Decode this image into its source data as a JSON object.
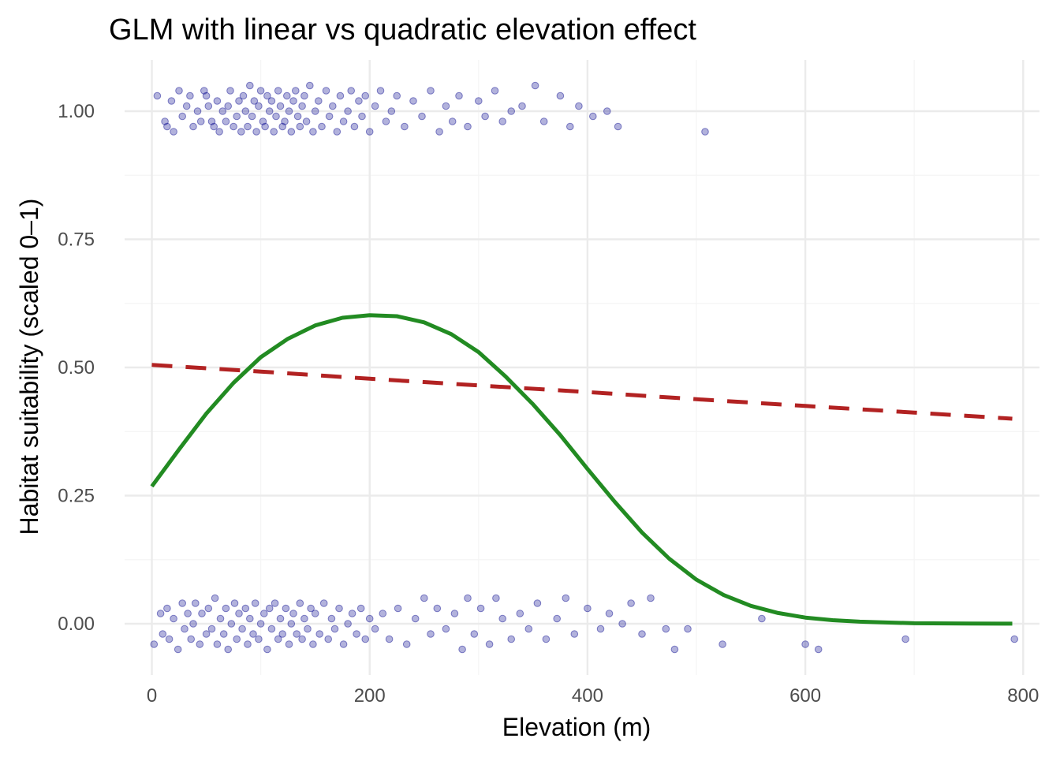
{
  "chart_data": {
    "type": "scatter",
    "title": "GLM with linear vs quadratic elevation effect",
    "xlabel": "Elevation (m)",
    "ylabel": "Habitat suitability (scaled 0–1)",
    "xlim": [
      -25,
      815
    ],
    "ylim": [
      -0.1,
      1.1
    ],
    "x_ticks": [
      0,
      200,
      400,
      600,
      800
    ],
    "x_tick_labels": [
      "0",
      "200",
      "400",
      "600",
      "800"
    ],
    "y_ticks": [
      0,
      0.25,
      0.5,
      0.75,
      1.0
    ],
    "y_tick_labels": [
      "0.00",
      "0.25",
      "0.50",
      "0.75",
      "1.00"
    ],
    "x_minor": [
      100,
      300,
      500,
      700
    ],
    "y_minor": [
      0.125,
      0.375,
      0.625,
      0.875
    ],
    "grid": true,
    "legend": "none",
    "colors": {
      "points": "#00008B",
      "linear": "#B22222",
      "quadratic": "#228B22",
      "grid_major": "#EBEBEB",
      "grid_minor": "#F5F5F5"
    },
    "series": [
      {
        "kind": "points",
        "style": "jittered semi-transparent dots",
        "points": [
          [
            5,
            1.03
          ],
          [
            12,
            0.98
          ],
          [
            14,
            0.97
          ],
          [
            18,
            1.02
          ],
          [
            20,
            0.96
          ],
          [
            25,
            1.04
          ],
          [
            28,
            0.99
          ],
          [
            32,
            1.01
          ],
          [
            35,
            1.03
          ],
          [
            38,
            0.97
          ],
          [
            42,
            1.0
          ],
          [
            45,
            0.98
          ],
          [
            48,
            1.04
          ],
          [
            50,
            1.03
          ],
          [
            52,
            1.01
          ],
          [
            55,
            0.98
          ],
          [
            57,
            0.97
          ],
          [
            60,
            1.02
          ],
          [
            62,
            0.96
          ],
          [
            65,
            1.0
          ],
          [
            68,
            0.98
          ],
          [
            70,
            1.01
          ],
          [
            72,
            1.04
          ],
          [
            75,
            0.97
          ],
          [
            78,
            0.99
          ],
          [
            80,
            1.02
          ],
          [
            82,
            0.96
          ],
          [
            84,
            1.03
          ],
          [
            86,
            1.0
          ],
          [
            88,
            0.97
          ],
          [
            90,
            1.05
          ],
          [
            92,
            0.99
          ],
          [
            94,
            1.02
          ],
          [
            96,
            0.96
          ],
          [
            98,
            1.01
          ],
          [
            100,
            1.04
          ],
          [
            102,
            0.98
          ],
          [
            104,
            0.97
          ],
          [
            106,
            1.03
          ],
          [
            108,
            1.0
          ],
          [
            110,
            1.02
          ],
          [
            112,
            0.96
          ],
          [
            114,
            0.99
          ],
          [
            116,
            1.04
          ],
          [
            118,
            1.01
          ],
          [
            120,
            0.97
          ],
          [
            122,
            0.98
          ],
          [
            124,
            1.03
          ],
          [
            126,
            1.0
          ],
          [
            128,
            0.96
          ],
          [
            130,
            1.02
          ],
          [
            132,
            1.04
          ],
          [
            134,
            0.99
          ],
          [
            136,
            0.97
          ],
          [
            138,
            1.01
          ],
          [
            140,
            1.03
          ],
          [
            142,
            0.98
          ],
          [
            145,
            1.05
          ],
          [
            148,
            0.96
          ],
          [
            150,
            1.0
          ],
          [
            153,
            1.02
          ],
          [
            156,
            0.97
          ],
          [
            160,
            1.04
          ],
          [
            163,
            0.99
          ],
          [
            166,
            1.01
          ],
          [
            170,
            0.96
          ],
          [
            173,
            1.03
          ],
          [
            176,
            0.98
          ],
          [
            180,
            1.0
          ],
          [
            183,
            1.04
          ],
          [
            186,
            0.97
          ],
          [
            190,
            1.02
          ],
          [
            193,
            0.99
          ],
          [
            196,
            1.03
          ],
          [
            200,
            0.96
          ],
          [
            205,
            1.01
          ],
          [
            210,
            1.04
          ],
          [
            215,
            0.98
          ],
          [
            220,
            1.0
          ],
          [
            225,
            1.03
          ],
          [
            232,
            0.97
          ],
          [
            240,
            1.02
          ],
          [
            248,
            0.99
          ],
          [
            256,
            1.04
          ],
          [
            264,
            0.96
          ],
          [
            270,
            1.01
          ],
          [
            276,
            0.98
          ],
          [
            282,
            1.03
          ],
          [
            290,
            0.97
          ],
          [
            300,
            1.02
          ],
          [
            306,
            0.99
          ],
          [
            315,
            1.04
          ],
          [
            322,
            0.98
          ],
          [
            330,
            1.0
          ],
          [
            340,
            1.01
          ],
          [
            352,
            1.05
          ],
          [
            360,
            0.98
          ],
          [
            375,
            1.03
          ],
          [
            384,
            0.97
          ],
          [
            392,
            1.01
          ],
          [
            405,
            0.99
          ],
          [
            418,
            1.0
          ],
          [
            428,
            0.97
          ],
          [
            508,
            0.96
          ],
          [
            2,
            -0.04
          ],
          [
            8,
            0.02
          ],
          [
            10,
            -0.02
          ],
          [
            14,
            0.03
          ],
          [
            16,
            -0.03
          ],
          [
            20,
            0.01
          ],
          [
            24,
            -0.05
          ],
          [
            28,
            0.04
          ],
          [
            30,
            -0.01
          ],
          [
            33,
            0.02
          ],
          [
            36,
            -0.03
          ],
          [
            38,
            0.0
          ],
          [
            40,
            0.04
          ],
          [
            44,
            -0.04
          ],
          [
            46,
            0.02
          ],
          [
            50,
            -0.02
          ],
          [
            52,
            0.03
          ],
          [
            55,
            -0.01
          ],
          [
            58,
            0.05
          ],
          [
            60,
            -0.04
          ],
          [
            63,
            0.01
          ],
          [
            66,
            -0.02
          ],
          [
            68,
            0.03
          ],
          [
            70,
            -0.05
          ],
          [
            73,
            0.0
          ],
          [
            76,
            0.04
          ],
          [
            78,
            -0.03
          ],
          [
            80,
            0.02
          ],
          [
            83,
            -0.01
          ],
          [
            86,
            0.03
          ],
          [
            88,
            -0.04
          ],
          [
            90,
            0.01
          ],
          [
            93,
            -0.02
          ],
          [
            95,
            0.04
          ],
          [
            98,
            -0.03
          ],
          [
            100,
            0.0
          ],
          [
            103,
            0.02
          ],
          [
            106,
            -0.05
          ],
          [
            108,
            0.03
          ],
          [
            110,
            -0.01
          ],
          [
            113,
            0.04
          ],
          [
            116,
            -0.03
          ],
          [
            118,
            0.01
          ],
          [
            120,
            -0.02
          ],
          [
            123,
            0.03
          ],
          [
            126,
            -0.04
          ],
          [
            128,
            0.0
          ],
          [
            130,
            0.02
          ],
          [
            133,
            -0.02
          ],
          [
            136,
            0.04
          ],
          [
            138,
            -0.03
          ],
          [
            140,
            0.01
          ],
          [
            143,
            -0.01
          ],
          [
            146,
            0.03
          ],
          [
            148,
            -0.04
          ],
          [
            150,
            0.02
          ],
          [
            154,
            -0.02
          ],
          [
            158,
            0.04
          ],
          [
            162,
            -0.03
          ],
          [
            165,
            0.01
          ],
          [
            168,
            -0.01
          ],
          [
            172,
            0.03
          ],
          [
            176,
            -0.04
          ],
          [
            180,
            0.0
          ],
          [
            184,
            0.02
          ],
          [
            188,
            -0.02
          ],
          [
            192,
            0.03
          ],
          [
            196,
            -0.03
          ],
          [
            200,
            0.01
          ],
          [
            205,
            -0.01
          ],
          [
            212,
            0.02
          ],
          [
            218,
            -0.03
          ],
          [
            226,
            0.03
          ],
          [
            234,
            -0.04
          ],
          [
            242,
            0.01
          ],
          [
            250,
            0.05
          ],
          [
            256,
            -0.02
          ],
          [
            262,
            0.03
          ],
          [
            270,
            -0.01
          ],
          [
            278,
            0.02
          ],
          [
            285,
            -0.05
          ],
          [
            290,
            0.05
          ],
          [
            296,
            -0.02
          ],
          [
            302,
            0.03
          ],
          [
            310,
            -0.04
          ],
          [
            316,
            0.05
          ],
          [
            322,
            0.01
          ],
          [
            330,
            -0.03
          ],
          [
            338,
            0.02
          ],
          [
            346,
            -0.01
          ],
          [
            354,
            0.04
          ],
          [
            362,
            -0.03
          ],
          [
            372,
            0.01
          ],
          [
            380,
            0.05
          ],
          [
            388,
            -0.02
          ],
          [
            400,
            0.03
          ],
          [
            412,
            -0.01
          ],
          [
            420,
            0.02
          ],
          [
            432,
            0.0
          ],
          [
            440,
            0.04
          ],
          [
            450,
            -0.02
          ],
          [
            458,
            0.05
          ],
          [
            472,
            -0.01
          ],
          [
            480,
            -0.05
          ],
          [
            492,
            -0.01
          ],
          [
            524,
            -0.04
          ],
          [
            560,
            0.01
          ],
          [
            600,
            -0.04
          ],
          [
            612,
            -0.05
          ],
          [
            692,
            -0.03
          ],
          [
            792,
            -0.03
          ]
        ]
      },
      {
        "kind": "line",
        "style": "dashed",
        "points": [
          [
            0,
            0.505
          ],
          [
            100,
            0.492
          ],
          [
            200,
            0.478
          ],
          [
            300,
            0.465
          ],
          [
            400,
            0.452
          ],
          [
            500,
            0.438
          ],
          [
            600,
            0.425
          ],
          [
            700,
            0.412
          ],
          [
            790,
            0.4
          ]
        ]
      },
      {
        "kind": "line",
        "style": "solid",
        "points": [
          [
            0,
            0.268
          ],
          [
            25,
            0.34
          ],
          [
            50,
            0.41
          ],
          [
            75,
            0.47
          ],
          [
            100,
            0.52
          ],
          [
            125,
            0.556
          ],
          [
            150,
            0.582
          ],
          [
            175,
            0.597
          ],
          [
            200,
            0.602
          ],
          [
            225,
            0.6
          ],
          [
            250,
            0.588
          ],
          [
            275,
            0.565
          ],
          [
            300,
            0.53
          ],
          [
            325,
            0.482
          ],
          [
            350,
            0.428
          ],
          [
            375,
            0.368
          ],
          [
            400,
            0.302
          ],
          [
            425,
            0.238
          ],
          [
            450,
            0.178
          ],
          [
            475,
            0.127
          ],
          [
            500,
            0.086
          ],
          [
            525,
            0.056
          ],
          [
            550,
            0.035
          ],
          [
            575,
            0.021
          ],
          [
            600,
            0.012
          ],
          [
            625,
            0.007
          ],
          [
            650,
            0.004
          ],
          [
            700,
            0.001
          ],
          [
            750,
            0.0003
          ],
          [
            790,
            0.0001
          ]
        ]
      }
    ]
  }
}
